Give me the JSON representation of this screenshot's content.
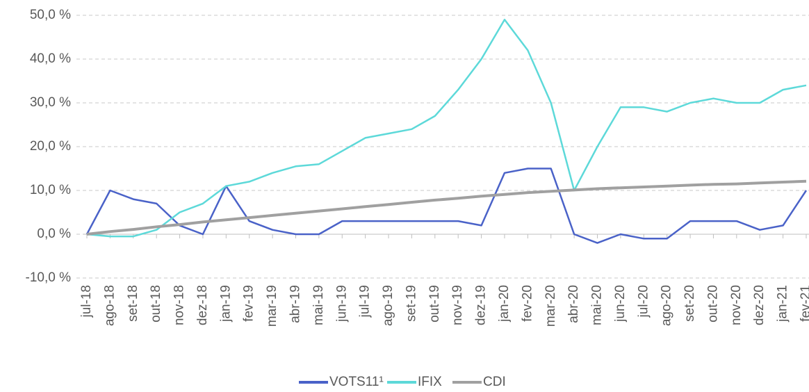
{
  "chart_data": {
    "type": "line",
    "categories": [
      "jul-18",
      "ago-18",
      "set-18",
      "out-18",
      "nov-18",
      "dez-18",
      "jan-19",
      "fev-19",
      "mar-19",
      "abr-19",
      "mai-19",
      "jun-19",
      "jul-19",
      "ago-19",
      "set-19",
      "out-19",
      "nov-19",
      "dez-19",
      "jan-20",
      "fev-20",
      "mar-20",
      "abr-20",
      "mai-20",
      "jun-20",
      "jul-20",
      "ago-20",
      "set-20",
      "out-20",
      "nov-20",
      "dez-20",
      "jan-21",
      "fev-21"
    ],
    "series": [
      {
        "name": "VOTS11¹",
        "color": "#4a62c8",
        "values": [
          0,
          10,
          8,
          7,
          2,
          0,
          11,
          3,
          1,
          0,
          0,
          3,
          3,
          3,
          3,
          3,
          3,
          2,
          14,
          15,
          15,
          0,
          -2,
          0,
          -1,
          -1,
          3,
          3,
          3,
          1,
          2,
          10
        ]
      },
      {
        "name": "IFIX",
        "color": "#5dd9d9",
        "values": [
          0,
          -0.5,
          -0.5,
          1,
          5,
          7,
          11,
          12,
          14,
          15.5,
          16,
          19,
          22,
          23,
          24,
          27,
          33,
          40,
          49,
          42,
          30,
          10,
          20,
          29,
          29,
          28,
          30,
          31,
          30,
          30,
          33,
          34
        ]
      },
      {
        "name": "CDI",
        "color": "#a0a0a0",
        "values": [
          0,
          0.6,
          1.1,
          1.7,
          2.2,
          2.8,
          3.3,
          3.8,
          4.3,
          4.8,
          5.3,
          5.8,
          6.3,
          6.8,
          7.3,
          7.8,
          8.2,
          8.7,
          9.1,
          9.5,
          9.8,
          10.1,
          10.4,
          10.6,
          10.8,
          11,
          11.2,
          11.4,
          11.5,
          11.7,
          11.9,
          12.1
        ]
      }
    ],
    "ylim": [
      -10,
      50
    ],
    "yticks": [
      {
        "value": -10,
        "label": "-10,0 %"
      },
      {
        "value": 0,
        "label": "0,0 %"
      },
      {
        "value": 10,
        "label": "10,0 %"
      },
      {
        "value": 20,
        "label": "20,0 %"
      },
      {
        "value": 30,
        "label": "30,0 %"
      },
      {
        "value": 40,
        "label": "40,0 %"
      },
      {
        "value": 50,
        "label": "50,0 %"
      }
    ],
    "grid": true,
    "legend": "bottom"
  }
}
